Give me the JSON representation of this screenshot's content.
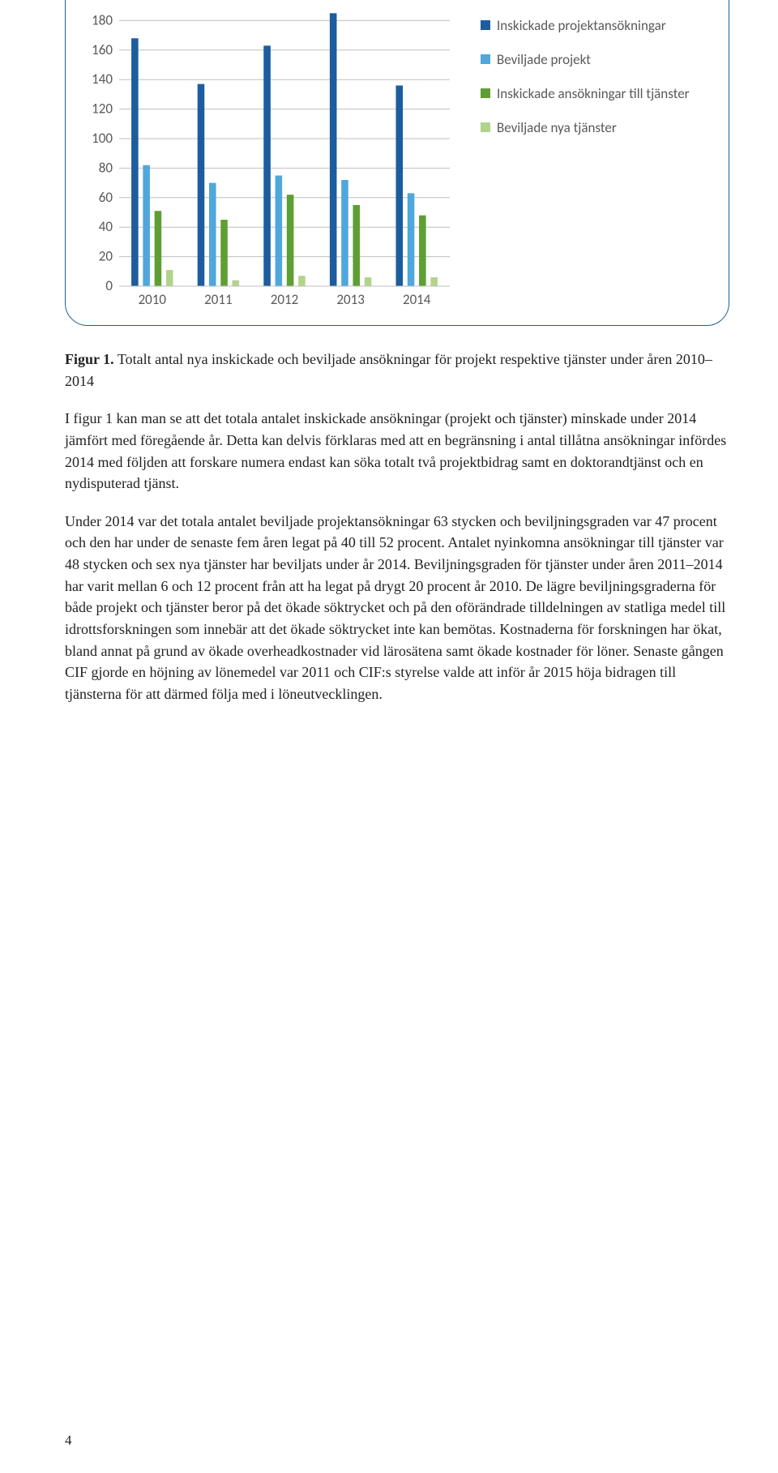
{
  "chart": {
    "type": "bar",
    "categories": [
      "2010",
      "2011",
      "2012",
      "2013",
      "2014"
    ],
    "series": [
      {
        "name": "Inskickade projektansökningar",
        "color": "#1d5c9f",
        "values": [
          168,
          137,
          163,
          185,
          136
        ]
      },
      {
        "name": "Beviljade projekt",
        "color": "#4fa7dd",
        "values": [
          82,
          70,
          75,
          72,
          63
        ]
      },
      {
        "name": "Inskickade ansökningar till tjänster",
        "color": "#5e9f34",
        "values": [
          51,
          45,
          62,
          55,
          48
        ]
      },
      {
        "name": "Beviljade nya tjänster",
        "color": "#b1d48a",
        "values": [
          11,
          4,
          7,
          6,
          6
        ]
      }
    ],
    "y": {
      "min": 0,
      "max": 200,
      "step": 20
    },
    "gridline_color": "#bfbfbf",
    "axis_text_color": "#595959",
    "axis_font_family": "Calibri, 'Segoe UI', Arial, sans-serif",
    "axis_font_size": 17,
    "background": "#ffffff",
    "bar_width_ratio": 0.6,
    "group_gap_ratio": 0.3
  },
  "caption": {
    "label": "Figur 1.",
    "text": "Totalt antal nya inskickade och beviljade ansökningar för projekt respektive tjänster under åren 2010‒2014"
  },
  "paragraphs": [
    "I figur 1 kan man se att det totala antalet inskickade ansökningar (projekt och tjänster) minskade under 2014 jämfört med föregående år. Detta kan delvis förklaras med att en begränsning i antal tillåtna ansökningar infördes 2014 med följden att forskare numera endast kan söka totalt två projektbidrag samt en doktorandtjänst och en nydisputerad tjänst.",
    "Under 2014 var det totala antalet beviljade projektansökningar 63 stycken och beviljningsgraden var 47 procent och den har under de senaste fem åren legat på 40 till 52 procent. Antalet nyinkomna ansökningar till tjänster var 48 stycken och sex nya tjänster har beviljats under år 2014. Beviljningsgraden för tjänster under åren 2011‒2014 har varit mellan 6 och 12 procent från att ha legat på drygt 20 procent år 2010. De lägre beviljningsgraderna för både projekt och tjänster beror på det ökade söktrycket och på den oförändrade tilldelningen av statliga medel till idrottsforskningen som innebär att det ökade söktrycket inte kan bemötas. Kostnaderna för forskningen har ökat, bland annat på grund av ökade overheadkostnader vid lärosätena samt ökade kostnader för löner. Senaste gången CIF gjorde en höjning av lönemedel var 2011 och CIF:s styrelse valde att inför år 2015 höja bidragen till tjänsterna för att därmed följa med i löneutvecklingen."
  ],
  "page_number": "4"
}
